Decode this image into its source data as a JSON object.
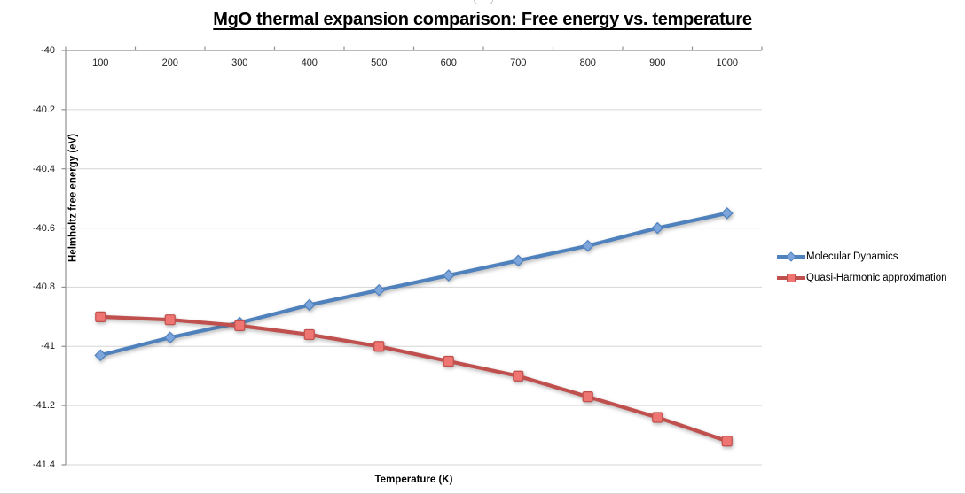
{
  "title": "MgO thermal expansion comparison: Free energy vs. temperature",
  "colors": {
    "axis_line": "#919191",
    "gridline": "#d6d6d6",
    "text": "#000000",
    "md_line": "#4f81bd",
    "md_marker_fill": "#7ca5dc",
    "qh_line": "#c0504d",
    "qh_marker_fill": "#ee7572"
  },
  "chart_data": {
    "type": "line",
    "title": "MgO thermal expansion comparison: Free energy vs. temperature",
    "xlabel": "Temperature (K)",
    "ylabel": "Helmholtz free energy (eV)",
    "categories": [
      "100",
      "200",
      "300",
      "400",
      "500",
      "600",
      "700",
      "800",
      "900",
      "1000"
    ],
    "series": [
      {
        "name": "Molecular Dynamics",
        "marker": "diamond",
        "color": "#4f81bd",
        "fill": "#7ca5dc",
        "values": [
          -41.03,
          -40.97,
          -40.92,
          -40.86,
          -40.81,
          -40.76,
          -40.71,
          -40.66,
          -40.6,
          -40.55
        ]
      },
      {
        "name": "Quasi-Harmonic approximation",
        "marker": "square",
        "color": "#c0504d",
        "fill": "#ee7572",
        "values": [
          -40.9,
          -40.91,
          -40.93,
          -40.96,
          -41.0,
          -41.05,
          -41.1,
          -41.17,
          -41.24,
          -41.32
        ]
      }
    ],
    "ylim": [
      -41.4,
      -40
    ],
    "ytick_step": 0.2,
    "ytick_labels": [
      "-40",
      "-40.2",
      "-40.4",
      "-40.6",
      "-40.8",
      "-41",
      "-41.2",
      "-41.4"
    ],
    "grid": true,
    "legend_position": "right",
    "x_axis_position": "top"
  }
}
